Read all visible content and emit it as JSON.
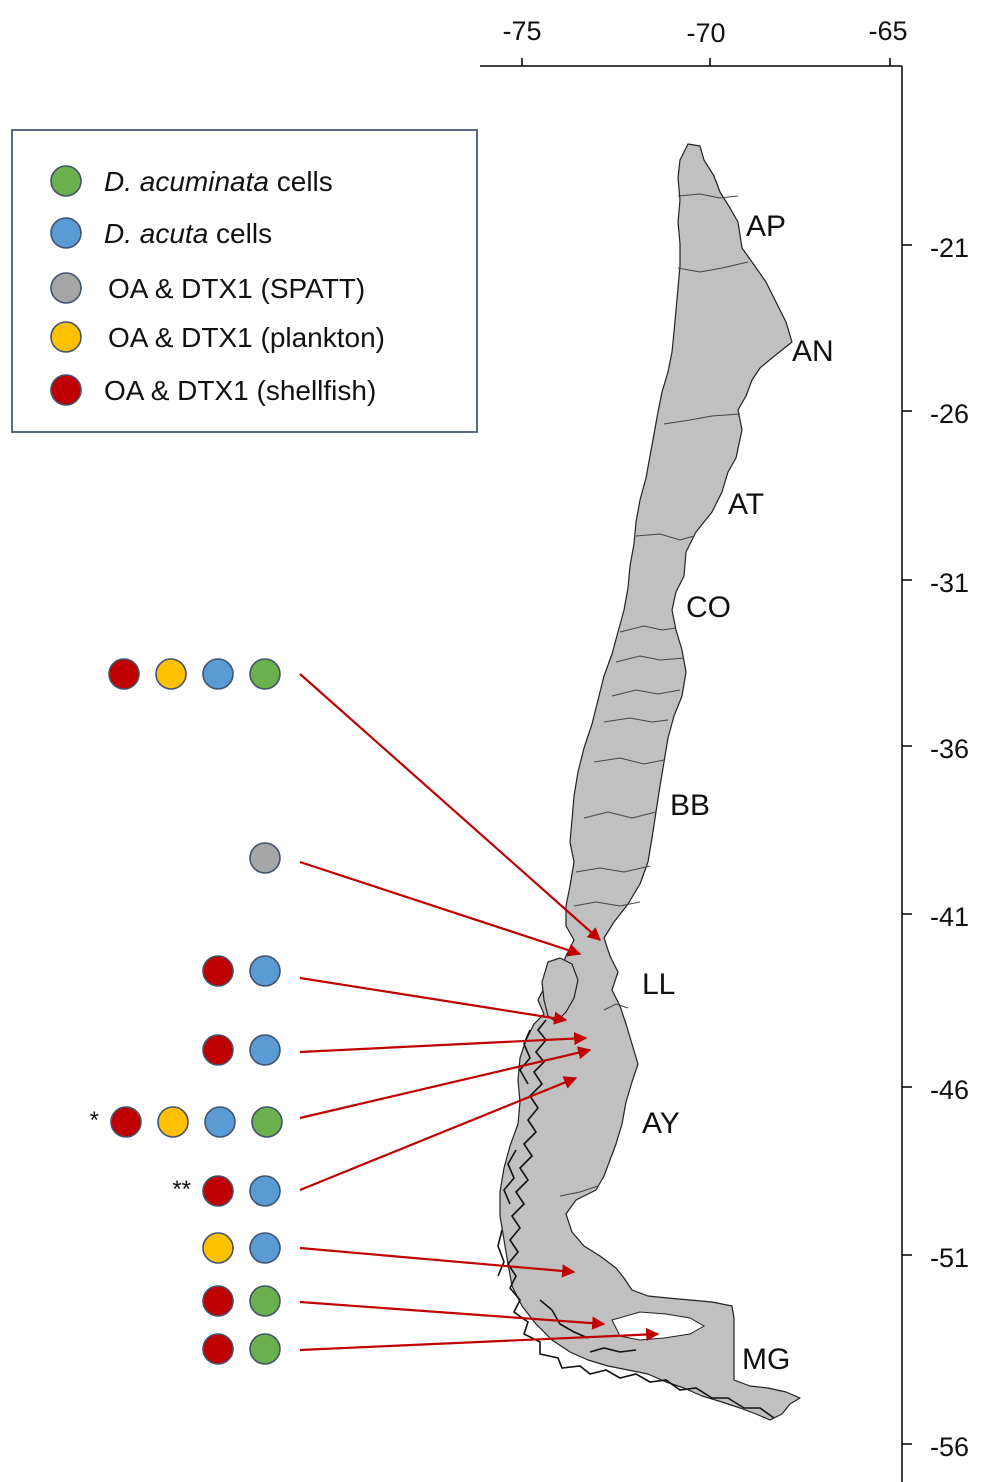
{
  "colors": {
    "acuminata": "#6ab04c",
    "acuta": "#5b9bd5",
    "spatt": "#a6a6a6",
    "plankton": "#ffc000",
    "shellfish": "#c00000",
    "land": "#c0c0c0",
    "arrow": "#c00000"
  },
  "axes": {
    "longitude_ticks": [
      "-75",
      "-70",
      "-65"
    ],
    "latitude_ticks": [
      "-21",
      "-26",
      "-31",
      "-36",
      "-41",
      "-46",
      "-51",
      "-56"
    ]
  },
  "legend": {
    "items": [
      {
        "key": "acuminata",
        "italic": "D. acuminata",
        "text": " cells"
      },
      {
        "key": "acuta",
        "italic": "D. acuta",
        "text": " cells"
      },
      {
        "key": "spatt",
        "italic": "",
        "text": "OA & DTX1 (SPATT)"
      },
      {
        "key": "plankton",
        "italic": "",
        "text": "OA & DTX1 (plankton)"
      },
      {
        "key": "shellfish",
        "italic": "",
        "text": "OA & DTX1 (shellfish)"
      }
    ]
  },
  "regions": [
    "AP",
    "AN",
    "AT",
    "CO",
    "BB",
    "LL",
    "AY",
    "MG"
  ],
  "sites": [
    {
      "marker": "",
      "dots": [
        "shellfish",
        "plankton",
        "acuta",
        "acuminata"
      ]
    },
    {
      "marker": "",
      "dots": [
        "spatt"
      ]
    },
    {
      "marker": "",
      "dots": [
        "shellfish",
        "acuta"
      ]
    },
    {
      "marker": "",
      "dots": [
        "shellfish",
        "acuta"
      ]
    },
    {
      "marker": "*",
      "dots": [
        "shellfish",
        "plankton",
        "acuta",
        "acuminata"
      ]
    },
    {
      "marker": "**",
      "dots": [
        "shellfish",
        "acuta"
      ]
    },
    {
      "marker": "",
      "dots": [
        "plankton",
        "acuta"
      ]
    },
    {
      "marker": "",
      "dots": [
        "shellfish",
        "acuminata"
      ]
    },
    {
      "marker": "",
      "dots": [
        "shellfish",
        "acuminata"
      ]
    }
  ]
}
